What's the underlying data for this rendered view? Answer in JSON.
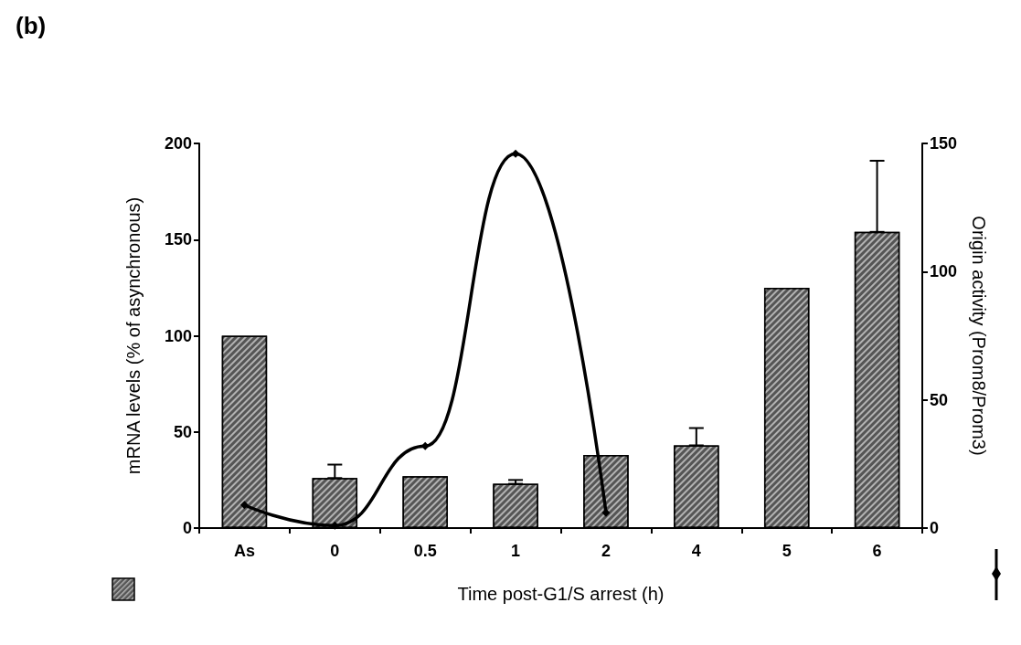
{
  "chart_data": {
    "type": "bar",
    "title": "(b)",
    "xlabel": "Time post-G1/S arrest (h)",
    "ylabel": "mRNA levels (% of asynchronous)",
    "y2label": "Origin activity (Prom8/Prom3)",
    "categories": [
      "As",
      "0",
      "0.5",
      "1",
      "2",
      "4",
      "5",
      "6"
    ],
    "series": [
      {
        "color": "#555555",
        "values": [
          100,
          26,
          27,
          23,
          38,
          43,
          125,
          154
        ],
        "errors": [
          null,
          [
            26,
            33
          ],
          null,
          [
            23,
            25
          ],
          null,
          [
            43,
            52
          ],
          null,
          [
            154,
            191
          ]
        ]
      },
      {
        "type": "line",
        "axis": "y2",
        "color": "#000000",
        "marker": "diamond",
        "values": [
          9,
          1,
          32,
          146,
          6,
          null,
          null,
          null
        ]
      }
    ],
    "ylim": [
      0,
      200
    ],
    "yticks": [
      0,
      50,
      100,
      150,
      200
    ],
    "y2lim": [
      0,
      150
    ],
    "y2ticks": [
      0,
      50,
      100,
      150
    ],
    "grid": false
  }
}
